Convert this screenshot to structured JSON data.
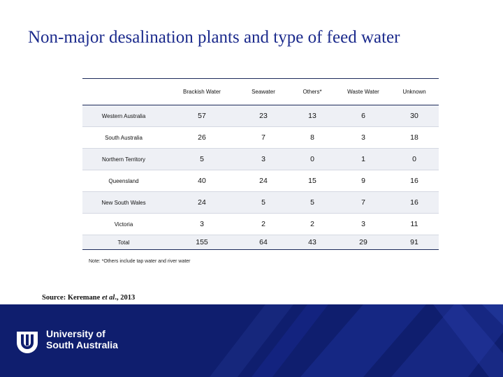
{
  "title": "Non-major desalination plants and type of feed water",
  "table": {
    "headers": [
      "",
      "Brackish Water",
      "Seawater",
      "Others*",
      "Waste Water",
      "Unknown"
    ],
    "rows": [
      {
        "label": "Western Australia",
        "values": [
          "57",
          "23",
          "13",
          "6",
          "30"
        ]
      },
      {
        "label": "South Australia",
        "values": [
          "26",
          "7",
          "8",
          "3",
          "18"
        ]
      },
      {
        "label": "Northern Territory",
        "values": [
          "5",
          "3",
          "0",
          "1",
          "0"
        ]
      },
      {
        "label": "Queensland",
        "values": [
          "40",
          "24",
          "15",
          "9",
          "16"
        ]
      },
      {
        "label": "New South Wales",
        "values": [
          "24",
          "5",
          "5",
          "7",
          "16"
        ]
      },
      {
        "label": "Victoria",
        "values": [
          "3",
          "2",
          "2",
          "3",
          "11"
        ]
      },
      {
        "label": "Total",
        "values": [
          "155",
          "64",
          "43",
          "29",
          "91"
        ]
      }
    ]
  },
  "note": "Note: *Others include tap water and river water",
  "source": {
    "prefix": "Source: Keremane ",
    "italic": "et al",
    "suffix": "., 2013"
  },
  "footer": {
    "line1": "University of",
    "line2": "South Australia"
  },
  "colors": {
    "title": "#1b2a8c",
    "footer_bg": "#0f1e6e",
    "rule": "#1c2a5a"
  }
}
